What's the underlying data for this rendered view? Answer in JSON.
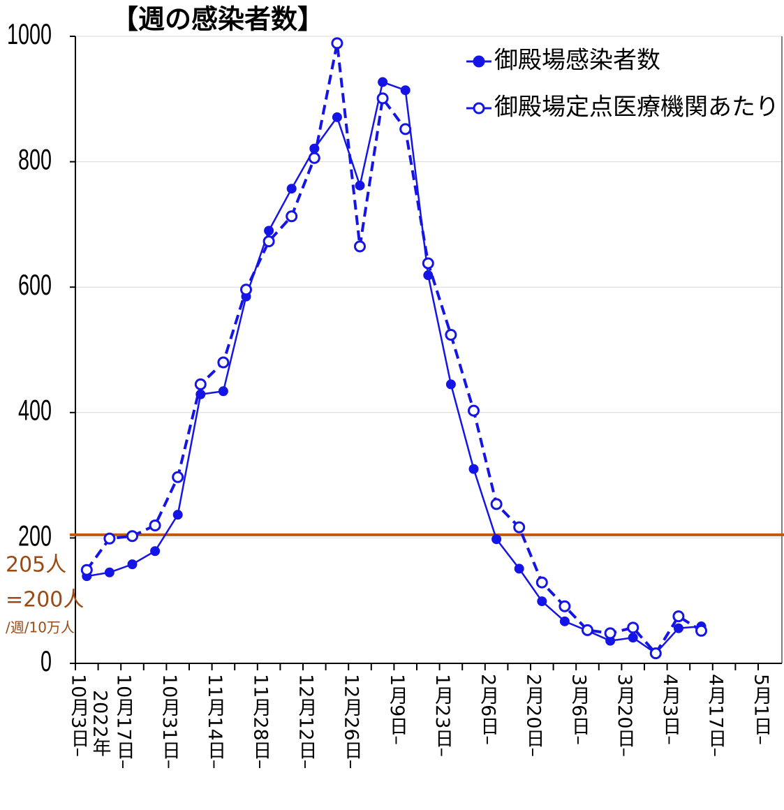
{
  "chart_data": {
    "type": "line",
    "title": "【週の感染者数】",
    "categories": [
      "10月3日–",
      null,
      "10月17日–",
      null,
      "10月31日–",
      null,
      "11月14日–",
      null,
      "11月28日–",
      null,
      "12月12日–",
      null,
      "12月26日–",
      null,
      "1月9日–",
      null,
      "1月23日–",
      null,
      "2月6日–",
      null,
      "2月20日–",
      null,
      "3月6日–",
      null,
      "3月20日–",
      null,
      "4月3日–",
      null,
      "4月17日–",
      null,
      "5月1日–"
    ],
    "year_label": "2022年",
    "series": [
      {
        "name": "御殿場感染者数",
        "color": "#1414e6",
        "line_style": "solid",
        "marker": "filled",
        "values": [
          139,
          145,
          158,
          179,
          237,
          429,
          434,
          585,
          690,
          757,
          821,
          871,
          762,
          927,
          914,
          619,
          445,
          310,
          198,
          151,
          99,
          67,
          52,
          36,
          41,
          16,
          56,
          59,
          null,
          null,
          null
        ]
      },
      {
        "name": "御殿場定点医療機関あたり",
        "color": "#1414e6",
        "line_style": "dashed",
        "marker": "hollow",
        "values": [
          149,
          199,
          203,
          220,
          297,
          445,
          480,
          596,
          673,
          713,
          806,
          989,
          665,
          901,
          852,
          638,
          524,
          403,
          254,
          217,
          129,
          91,
          53,
          48,
          57,
          16,
          75,
          52,
          null,
          null,
          null
        ]
      }
    ],
    "ylim": [
      0,
      1000
    ],
    "yticks": [
      0,
      200,
      400,
      600,
      800,
      1000
    ],
    "grid": true,
    "legend": "upper right",
    "reference_line": {
      "value": 205,
      "color": "#c0580f"
    },
    "annotations": [
      "205人",
      "=200人",
      "/週/10万人"
    ]
  }
}
